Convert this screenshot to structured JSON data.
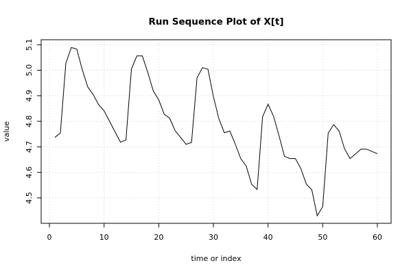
{
  "chart_data": {
    "type": "line",
    "title": "Run Sequence Plot of X[t]",
    "xlabel": "time or index",
    "ylabel": "value",
    "xlim": [
      1,
      60
    ],
    "ylim": [
      4.43,
      5.09
    ],
    "xticks": [
      0,
      10,
      20,
      30,
      40,
      50,
      60
    ],
    "yticks": [
      4.5,
      4.6,
      4.7,
      4.8,
      4.9,
      5.0,
      5.1
    ],
    "ytick_labels": [
      "4.5",
      "4.6",
      "4.7",
      "4.8",
      "4.9",
      "5.0",
      "5.1"
    ],
    "grid": true,
    "series": [
      {
        "name": "",
        "color": "#000000",
        "x": [
          1,
          2,
          3,
          4,
          5,
          6,
          7,
          8,
          9,
          10,
          11,
          12,
          13,
          14,
          15,
          16,
          17,
          18,
          19,
          20,
          21,
          22,
          23,
          24,
          25,
          26,
          27,
          28,
          29,
          30,
          31,
          32,
          33,
          34,
          35,
          36,
          37,
          38,
          39,
          40,
          41,
          42,
          43,
          44,
          45,
          46,
          47,
          48,
          49,
          50,
          51,
          52,
          53,
          54,
          55,
          56,
          57,
          58,
          59,
          60
        ],
        "values": [
          4.737,
          4.754,
          5.027,
          5.089,
          5.083,
          5.003,
          4.935,
          4.905,
          4.865,
          4.841,
          4.8,
          4.759,
          4.718,
          4.727,
          5.005,
          5.056,
          5.056,
          4.991,
          4.919,
          4.884,
          4.828,
          4.812,
          4.763,
          4.737,
          4.71,
          4.717,
          4.97,
          5.01,
          5.004,
          4.897,
          4.81,
          4.755,
          4.762,
          4.711,
          4.654,
          4.625,
          4.553,
          4.533,
          4.818,
          4.867,
          4.82,
          4.744,
          4.663,
          4.654,
          4.654,
          4.615,
          4.554,
          4.532,
          4.43,
          4.466,
          4.754,
          4.787,
          4.762,
          4.692,
          4.654,
          4.672,
          4.691,
          4.691,
          4.682,
          4.673
        ]
      }
    ]
  }
}
